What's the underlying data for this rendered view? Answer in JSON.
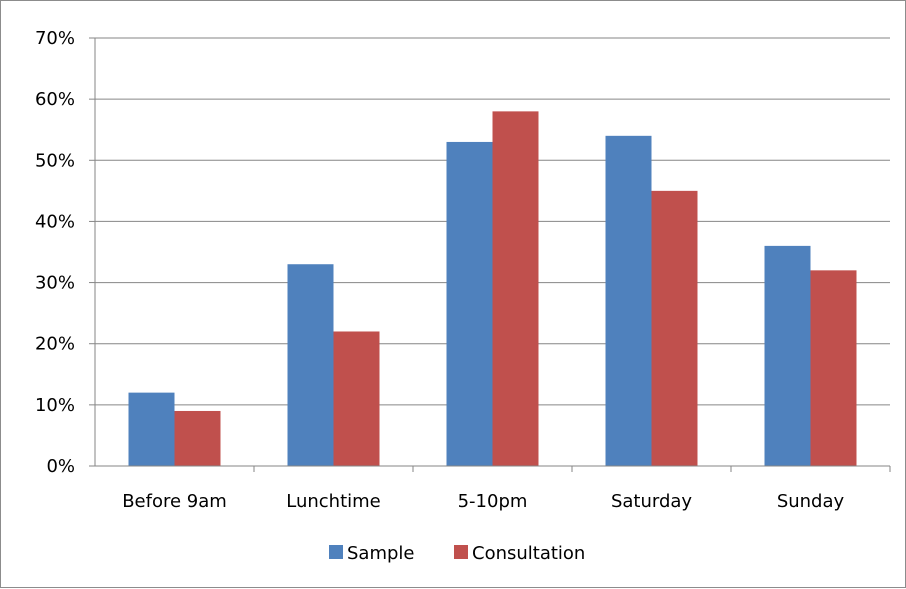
{
  "chart_data": {
    "type": "bar",
    "categories": [
      "Before 9am",
      "Lunchtime",
      "5-10pm",
      "Saturday",
      "Sunday"
    ],
    "series": [
      {
        "name": "Sample",
        "color": "#4F81BD",
        "values": [
          12,
          33,
          53,
          54,
          36
        ]
      },
      {
        "name": "Consultation",
        "color": "#C0504D",
        "values": [
          9,
          22,
          58,
          45,
          32
        ]
      }
    ],
    "title": "",
    "xlabel": "",
    "ylabel": "",
    "ylim": [
      0,
      70
    ],
    "yticks": [
      "0%",
      "10%",
      "20%",
      "30%",
      "40%",
      "50%",
      "60%",
      "70%"
    ],
    "grid": true,
    "legend_position": "bottom"
  }
}
